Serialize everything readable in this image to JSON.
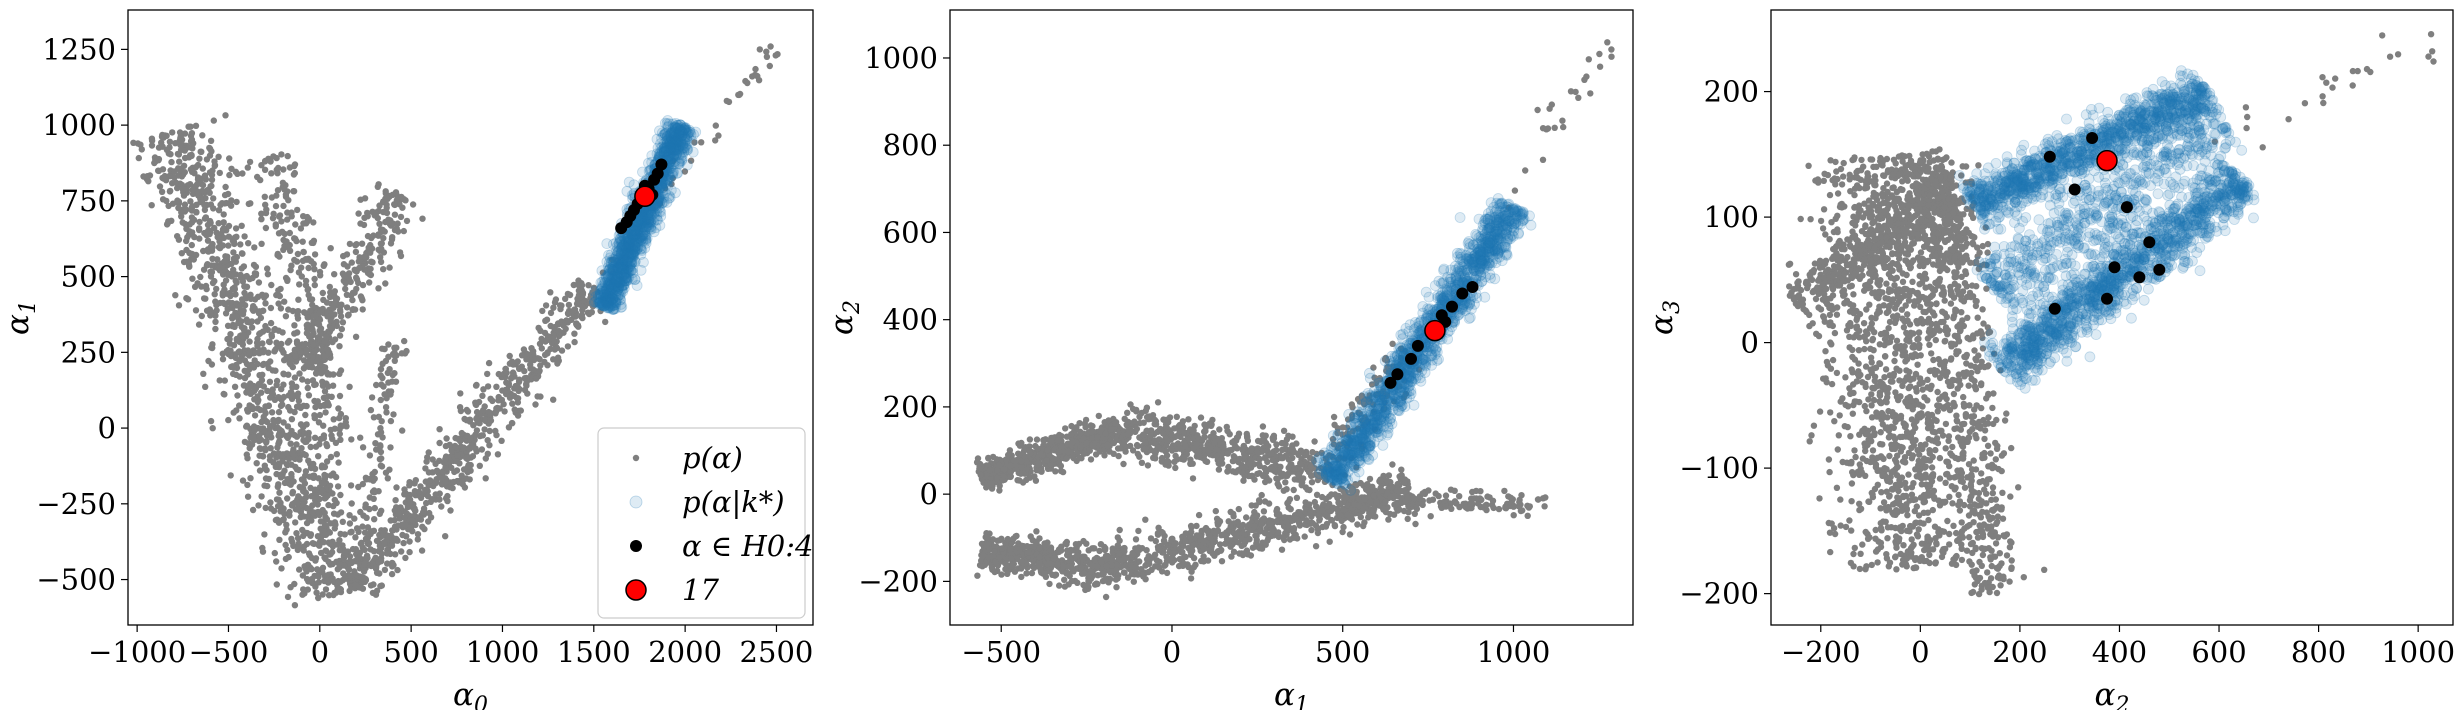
{
  "figure": {
    "colors": {
      "prior": "#7f7f7f",
      "posterior": "#1f77b4",
      "history": "#000000",
      "selected": "#ff0000"
    }
  },
  "legend": {
    "location": "lower-right",
    "entries": [
      {
        "label": "p(α)",
        "marker": "small-dot",
        "color": "#7f7f7f"
      },
      {
        "label": "p(α|k*)",
        "marker": "faint-circle",
        "color": "#1f77b4"
      },
      {
        "label": "α ∈ H0:4",
        "marker": "dot",
        "color": "#000000"
      },
      {
        "label": "17",
        "marker": "large-circle",
        "color": "#ff0000"
      }
    ]
  },
  "chart_data": [
    {
      "type": "scatter",
      "xlabel": "α0",
      "ylabel": "α1",
      "xlim": [
        -1050,
        2700
      ],
      "ylim": [
        -650,
        1380
      ],
      "xticks": [
        -1000,
        -500,
        0,
        500,
        1000,
        1500,
        2000,
        2500
      ],
      "yticks": [
        -500,
        -250,
        0,
        250,
        500,
        750,
        1000,
        1250
      ],
      "grid": false,
      "series": [
        {
          "name": "p(α)",
          "color": "#7f7f7f",
          "clusters": [
            {
              "shape": "band",
              "from": [
                -820,
                980
              ],
              "to": [
                100,
                -550
              ],
              "width": 260,
              "count": 1200
            },
            {
              "shape": "band",
              "from": [
                -250,
                900
              ],
              "to": [
                80,
                -50
              ],
              "width": 150,
              "count": 250
            },
            {
              "shape": "band",
              "from": [
                180,
                -530
              ],
              "to": [
                420,
                300
              ],
              "width": 90,
              "count": 120
            },
            {
              "shape": "band",
              "from": [
                -100,
                200
              ],
              "to": [
                450,
                770
              ],
              "width": 160,
              "count": 300
            },
            {
              "shape": "band",
              "from": [
                190,
                -520
              ],
              "to": [
                1500,
                470
              ],
              "width": 150,
              "count": 650
            },
            {
              "shape": "band",
              "from": [
                1500,
                470
              ],
              "to": [
                2500,
                1270
              ],
              "width": 80,
              "count": 50
            }
          ]
        },
        {
          "name": "p(α|k*)",
          "color": "#1f77b4",
          "clusters": [
            {
              "shape": "band",
              "from": [
                1560,
                400
              ],
              "to": [
                1980,
                1000
              ],
              "width": 85,
              "count": 1500
            }
          ]
        },
        {
          "name": "α ∈ H0:4",
          "color": "#000000",
          "points": [
            [
              1650,
              660
            ],
            [
              1680,
              680
            ],
            [
              1720,
              720
            ],
            [
              1760,
              760
            ],
            [
              1800,
              790
            ],
            [
              1830,
              820
            ],
            [
              1850,
              840
            ],
            [
              1870,
              870
            ],
            [
              1700,
              700
            ],
            [
              1740,
              740
            ],
            [
              1780,
              800
            ],
            [
              1820,
              770
            ]
          ]
        },
        {
          "name": "17",
          "color": "#ff0000",
          "points": [
            [
              1780,
              765
            ]
          ]
        }
      ]
    },
    {
      "type": "scatter",
      "xlabel": "α1",
      "ylabel": "α2",
      "xlim": [
        -650,
        1350
      ],
      "ylim": [
        -300,
        1110
      ],
      "xticks": [
        -500,
        0,
        500,
        1000
      ],
      "yticks": [
        -200,
        0,
        200,
        400,
        600,
        800,
        1000
      ],
      "grid": false,
      "series": [
        {
          "name": "p(α)",
          "color": "#7f7f7f",
          "clusters": [
            {
              "shape": "band",
              "from": [
                -560,
                40
              ],
              "to": [
                -150,
                145
              ],
              "width": 55,
              "count": 650
            },
            {
              "shape": "band",
              "from": [
                -150,
                145
              ],
              "to": [
                420,
                60
              ],
              "width": 90,
              "count": 550
            },
            {
              "shape": "band",
              "from": [
                -560,
                -130
              ],
              "to": [
                -150,
                -175
              ],
              "width": 70,
              "count": 500
            },
            {
              "shape": "band",
              "from": [
                -150,
                -160
              ],
              "to": [
                700,
                10
              ],
              "width": 80,
              "count": 700
            },
            {
              "shape": "band",
              "from": [
                500,
                -20
              ],
              "to": [
                1100,
                -20
              ],
              "width": 45,
              "count": 150
            },
            {
              "shape": "band",
              "from": [
                430,
                30
              ],
              "to": [
                700,
                330
              ],
              "width": 70,
              "count": 120
            },
            {
              "shape": "band",
              "from": [
                950,
                650
              ],
              "to": [
                1280,
                1040
              ],
              "width": 60,
              "count": 25
            }
          ]
        },
        {
          "name": "p(α|k*)",
          "color": "#1f77b4",
          "clusters": [
            {
              "shape": "band",
              "from": [
                470,
                30
              ],
              "to": [
                1000,
                660
              ],
              "width": 60,
              "count": 1500
            }
          ]
        },
        {
          "name": "α ∈ H0:4",
          "color": "#000000",
          "points": [
            [
              640,
              255
            ],
            [
              660,
              275
            ],
            [
              700,
              310
            ],
            [
              720,
              340
            ],
            [
              760,
              370
            ],
            [
              790,
              410
            ],
            [
              820,
              430
            ],
            [
              850,
              460
            ],
            [
              880,
              475
            ],
            [
              800,
              395
            ]
          ]
        },
        {
          "name": "17",
          "color": "#ff0000",
          "points": [
            [
              770,
              375
            ]
          ]
        }
      ]
    },
    {
      "type": "scatter",
      "xlabel": "α2",
      "ylabel": "α3",
      "xlim": [
        -300,
        1070
      ],
      "ylim": [
        -225,
        265
      ],
      "xticks": [
        -200,
        0,
        200,
        400,
        600,
        800,
        1000
      ],
      "yticks": [
        -200,
        -100,
        0,
        100,
        200
      ],
      "grid": false,
      "series": [
        {
          "name": "p(α)",
          "color": "#7f7f7f",
          "clusters": [
            {
              "shape": "band",
              "from": [
                -80,
                150
              ],
              "to": [
                -20,
                -180
              ],
              "width": 150,
              "count": 1300
            },
            {
              "shape": "band",
              "from": [
                -250,
                30
              ],
              "to": [
                60,
                120
              ],
              "width": 60,
              "count": 350
            },
            {
              "shape": "band",
              "from": [
                40,
                140
              ],
              "to": [
                150,
                -200
              ],
              "width": 70,
              "count": 500
            },
            {
              "shape": "band",
              "from": [
                0,
                150
              ],
              "to": [
                80,
                60
              ],
              "width": 60,
              "count": 200
            },
            {
              "shape": "band",
              "from": [
                560,
                160
              ],
              "to": [
                1050,
                240
              ],
              "width": 50,
              "count": 25
            }
          ]
        },
        {
          "name": "p(α|k*)",
          "color": "#1f77b4",
          "clusters": [
            {
              "shape": "band",
              "from": [
                100,
                110
              ],
              "to": [
                580,
                200
              ],
              "width": 55,
              "count": 1100
            },
            {
              "shape": "band",
              "from": [
                160,
                -20
              ],
              "to": [
                650,
                130
              ],
              "width": 65,
              "count": 1300
            },
            {
              "shape": "band",
              "from": [
                150,
                40
              ],
              "to": [
                600,
                180
              ],
              "width": 90,
              "count": 600
            }
          ]
        },
        {
          "name": "α ∈ H0:4",
          "color": "#000000",
          "points": [
            [
              260,
              148
            ],
            [
              345,
              163
            ],
            [
              310,
              122
            ],
            [
              415,
              108
            ],
            [
              460,
              80
            ],
            [
              390,
              60
            ],
            [
              480,
              58
            ],
            [
              440,
              52
            ],
            [
              375,
              35
            ],
            [
              270,
              27
            ]
          ]
        },
        {
          "name": "17",
          "color": "#ff0000",
          "points": [
            [
              375,
              145
            ]
          ]
        }
      ]
    }
  ]
}
